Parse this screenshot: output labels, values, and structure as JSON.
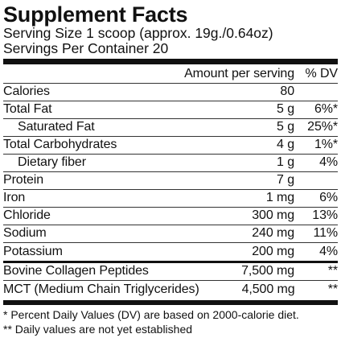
{
  "title": "Supplement Facts",
  "serving_size": "Serving Size 1 scoop (approx. 19g./0.64oz)",
  "servings_per_container": "Servings Per Container 20",
  "header": {
    "amount": "Amount per serving",
    "dv": "% DV"
  },
  "nutrients": [
    {
      "name": "Calories",
      "amount": "80",
      "dv": ""
    },
    {
      "name": "Total Fat",
      "amount": "5 g",
      "dv": "6%*"
    },
    {
      "name": "Saturated Fat",
      "amount": "5 g",
      "dv": "25%*"
    },
    {
      "name": "Total Carbohydrates",
      "amount": "4 g",
      "dv": "1%*"
    },
    {
      "name": "Dietary fiber",
      "amount": "1 g",
      "dv": "4%"
    },
    {
      "name": "Protein",
      "amount": "7 g",
      "dv": ""
    },
    {
      "name": "Iron",
      "amount": "1 mg",
      "dv": "6%"
    },
    {
      "name": "Chloride",
      "amount": "300 mg",
      "dv": "13%"
    },
    {
      "name": "Sodium",
      "amount": "240 mg",
      "dv": "11%"
    },
    {
      "name": "Potassium",
      "amount": "200 mg",
      "dv": "4%"
    }
  ],
  "proprietary": [
    {
      "name": "Bovine Collagen Peptides",
      "amount": "7,500 mg",
      "dv": "**"
    },
    {
      "name": "MCT (Medium Chain Triglycerides)",
      "amount": "4,500 mg",
      "dv": "**"
    }
  ],
  "footnotes": [
    "* Percent Daily Values (DV) are based on 2000-calorie diet.",
    "** Daily values are not yet established"
  ]
}
